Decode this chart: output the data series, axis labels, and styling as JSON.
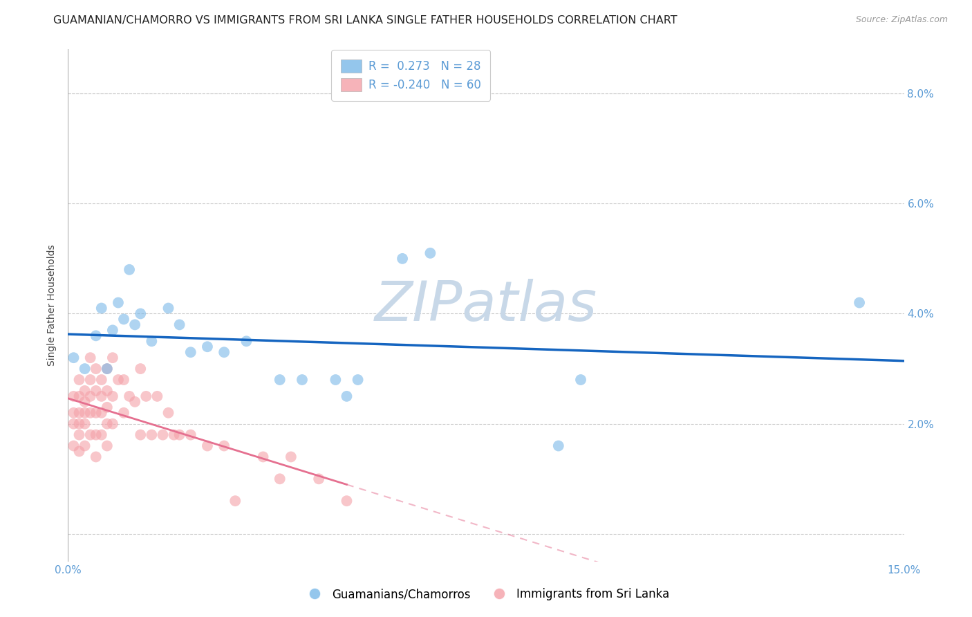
{
  "title": "GUAMANIAN/CHAMORRO VS IMMIGRANTS FROM SRI LANKA SINGLE FATHER HOUSEHOLDS CORRELATION CHART",
  "source": "Source: ZipAtlas.com",
  "ylabel": "Single Father Households",
  "xlim": [
    0.0,
    0.15
  ],
  "ylim": [
    -0.005,
    0.088
  ],
  "xticks": [
    0.0,
    0.03,
    0.06,
    0.09,
    0.12,
    0.15
  ],
  "yticks": [
    0.0,
    0.02,
    0.04,
    0.06,
    0.08
  ],
  "ytick_labels": [
    "",
    "2.0%",
    "4.0%",
    "6.0%",
    "8.0%"
  ],
  "xtick_labels": [
    "0.0%",
    "",
    "",
    "",
    "",
    "15.0%"
  ],
  "blue_R": 0.273,
  "blue_N": 28,
  "pink_R": -0.24,
  "pink_N": 60,
  "blue_scatter_x": [
    0.001,
    0.003,
    0.005,
    0.006,
    0.007,
    0.008,
    0.009,
    0.01,
    0.011,
    0.012,
    0.013,
    0.015,
    0.018,
    0.02,
    0.022,
    0.025,
    0.028,
    0.032,
    0.038,
    0.042,
    0.048,
    0.05,
    0.052,
    0.06,
    0.065,
    0.088,
    0.092,
    0.142
  ],
  "blue_scatter_y": [
    0.032,
    0.03,
    0.036,
    0.041,
    0.03,
    0.037,
    0.042,
    0.039,
    0.048,
    0.038,
    0.04,
    0.035,
    0.041,
    0.038,
    0.033,
    0.034,
    0.033,
    0.035,
    0.028,
    0.028,
    0.028,
    0.025,
    0.028,
    0.05,
    0.051,
    0.016,
    0.028,
    0.042
  ],
  "pink_scatter_x": [
    0.001,
    0.001,
    0.001,
    0.001,
    0.002,
    0.002,
    0.002,
    0.002,
    0.002,
    0.002,
    0.003,
    0.003,
    0.003,
    0.003,
    0.003,
    0.004,
    0.004,
    0.004,
    0.004,
    0.004,
    0.005,
    0.005,
    0.005,
    0.005,
    0.005,
    0.006,
    0.006,
    0.006,
    0.006,
    0.007,
    0.007,
    0.007,
    0.007,
    0.007,
    0.008,
    0.008,
    0.008,
    0.009,
    0.01,
    0.01,
    0.011,
    0.012,
    0.013,
    0.013,
    0.014,
    0.015,
    0.016,
    0.017,
    0.018,
    0.019,
    0.02,
    0.022,
    0.025,
    0.028,
    0.03,
    0.035,
    0.038,
    0.04,
    0.045,
    0.05
  ],
  "pink_scatter_y": [
    0.025,
    0.022,
    0.02,
    0.016,
    0.028,
    0.025,
    0.022,
    0.02,
    0.018,
    0.015,
    0.026,
    0.024,
    0.022,
    0.02,
    0.016,
    0.032,
    0.028,
    0.025,
    0.022,
    0.018,
    0.03,
    0.026,
    0.022,
    0.018,
    0.014,
    0.028,
    0.025,
    0.022,
    0.018,
    0.03,
    0.026,
    0.023,
    0.02,
    0.016,
    0.032,
    0.025,
    0.02,
    0.028,
    0.028,
    0.022,
    0.025,
    0.024,
    0.03,
    0.018,
    0.025,
    0.018,
    0.025,
    0.018,
    0.022,
    0.018,
    0.018,
    0.018,
    0.016,
    0.016,
    0.006,
    0.014,
    0.01,
    0.014,
    0.01,
    0.006
  ],
  "blue_color": "#7ab8e8",
  "pink_color": "#f4a0a8",
  "blue_scatter_alpha": 0.6,
  "pink_scatter_alpha": 0.6,
  "blue_line_color": "#1565c0",
  "pink_line_color": "#e57090",
  "pink_line_solid_end": 0.05,
  "watermark": "ZIPatlas",
  "watermark_color": "#c8d8e8",
  "background_color": "#ffffff",
  "grid_color": "#cccccc",
  "tick_color": "#5b9bd5",
  "title_fontsize": 11.5,
  "axis_label_fontsize": 10,
  "legend_fontsize": 12
}
